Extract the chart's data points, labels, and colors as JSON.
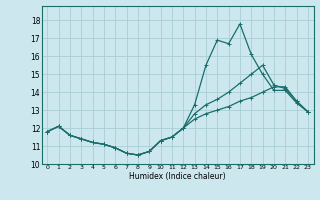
{
  "xlabel": "Humidex (Indice chaleur)",
  "bg_color": "#cce8ee",
  "grid_color": "#aacdd6",
  "line_color": "#1a6e6a",
  "xlim": [
    -0.5,
    23.5
  ],
  "ylim": [
    10.0,
    18.8
  ],
  "yticks": [
    10,
    11,
    12,
    13,
    14,
    15,
    16,
    17,
    18
  ],
  "xticks": [
    0,
    1,
    2,
    3,
    4,
    5,
    6,
    7,
    8,
    9,
    10,
    11,
    12,
    13,
    14,
    15,
    16,
    17,
    18,
    19,
    20,
    21,
    22,
    23
  ],
  "series": [
    [
      11.8,
      12.1,
      11.6,
      11.4,
      11.2,
      11.1,
      10.9,
      10.6,
      10.5,
      10.7,
      11.3,
      11.5,
      12.0,
      13.3,
      15.5,
      16.9,
      16.7,
      17.8,
      16.1,
      15.0,
      14.1,
      14.1,
      13.4,
      12.9
    ],
    [
      11.8,
      12.1,
      11.6,
      11.4,
      11.2,
      11.1,
      10.9,
      10.6,
      10.5,
      10.7,
      11.3,
      11.5,
      12.0,
      12.8,
      13.3,
      13.6,
      14.0,
      14.5,
      15.0,
      15.5,
      14.4,
      14.2,
      13.5,
      12.9
    ],
    [
      11.8,
      12.1,
      11.6,
      11.4,
      11.2,
      11.1,
      10.9,
      10.6,
      10.5,
      10.7,
      11.3,
      11.5,
      12.0,
      12.5,
      12.8,
      13.0,
      13.2,
      13.5,
      13.7,
      14.0,
      14.3,
      14.3,
      13.5,
      12.9
    ]
  ]
}
